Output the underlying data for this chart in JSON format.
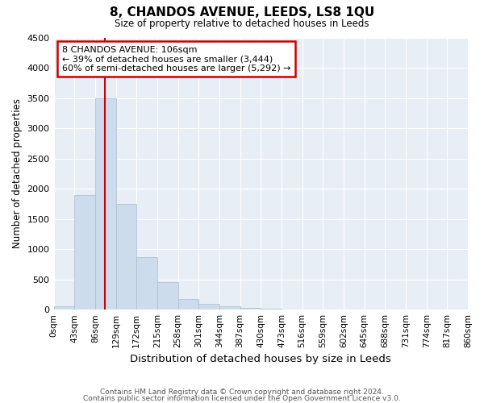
{
  "title": "8, CHANDOS AVENUE, LEEDS, LS8 1QU",
  "subtitle": "Size of property relative to detached houses in Leeds",
  "xlabel": "Distribution of detached houses by size in Leeds",
  "ylabel": "Number of detached properties",
  "bar_color": "#ccdcec",
  "bar_edge_color": "#aabccc",
  "bg_color": "#e8eef6",
  "grid_color": "white",
  "property_line_x": 106,
  "annotation_line1": "8 CHANDOS AVENUE: 106sqm",
  "annotation_line2": "← 39% of detached houses are smaller (3,444)",
  "annotation_line3": "60% of semi-detached houses are larger (5,292) →",
  "annotation_box_color": "#cc0000",
  "footnote1": "Contains HM Land Registry data © Crown copyright and database right 2024.",
  "footnote2": "Contains public sector information licensed under the Open Government Licence v3.0.",
  "bin_edges": [
    0,
    43,
    86,
    129,
    172,
    215,
    258,
    301,
    344,
    387,
    430,
    473,
    516,
    559,
    602,
    645,
    688,
    731,
    774,
    817,
    860
  ],
  "bin_labels": [
    "0sqm",
    "43sqm",
    "86sqm",
    "129sqm",
    "172sqm",
    "215sqm",
    "258sqm",
    "301sqm",
    "344sqm",
    "387sqm",
    "430sqm",
    "473sqm",
    "516sqm",
    "559sqm",
    "602sqm",
    "645sqm",
    "688sqm",
    "731sqm",
    "774sqm",
    "817sqm",
    "860sqm"
  ],
  "bar_heights": [
    50,
    1900,
    3500,
    1750,
    870,
    450,
    180,
    100,
    50,
    30,
    10,
    5,
    0,
    0,
    0,
    0,
    0,
    0,
    0,
    0
  ],
  "ylim": [
    0,
    4500
  ],
  "yticks": [
    0,
    500,
    1000,
    1500,
    2000,
    2500,
    3000,
    3500,
    4000,
    4500
  ]
}
